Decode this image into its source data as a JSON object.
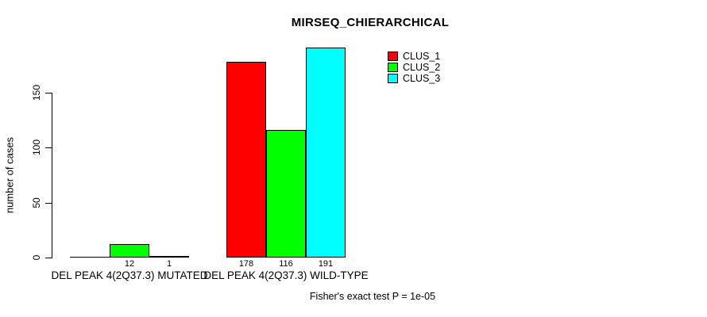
{
  "page": {
    "background": "#ffffff",
    "text_color": "#000000"
  },
  "chart_data": {
    "type": "bar",
    "title": "MIRSEQ_CHIERARCHICAL",
    "ylabel": "number of cases",
    "xlabel": "",
    "categories": [
      "DEL PEAK 4(2Q37.3) MUTATED",
      "DEL PEAK 4(2Q37.3) WILD-TYPE"
    ],
    "series": [
      {
        "name": "CLUS_1",
        "color": "#ff0000",
        "values": [
          0,
          178
        ]
      },
      {
        "name": "CLUS_2",
        "color": "#00ff00",
        "values": [
          12,
          116
        ]
      },
      {
        "name": "CLUS_3",
        "color": "#00ffff",
        "values": [
          1,
          191
        ]
      }
    ],
    "value_labels": [
      [
        "",
        "12",
        "1"
      ],
      [
        "178",
        "116",
        "191"
      ]
    ],
    "yticks": [
      0,
      50,
      100,
      150
    ],
    "ylim": [
      0,
      195
    ],
    "grid": false,
    "legend_position": "top-right",
    "legend_entries": [
      "CLUS_1",
      "CLUS_2",
      "CLUS_3"
    ],
    "bar_border_color": "#000000",
    "annotation": "Fisher's exact test P = 1e-05"
  }
}
